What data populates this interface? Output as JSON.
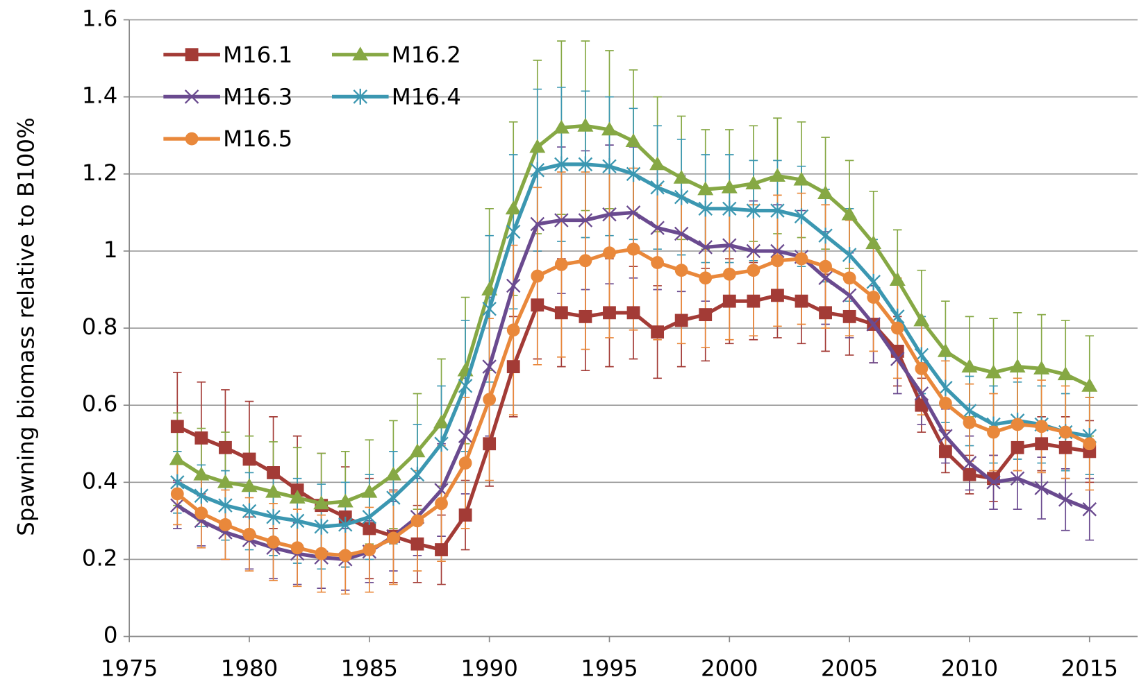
{
  "chart_data": {
    "type": "line",
    "y_label": "Spawning  biomass relative to B100%",
    "x": [
      1977,
      1978,
      1979,
      1980,
      1981,
      1982,
      1983,
      1984,
      1985,
      1986,
      1987,
      1988,
      1989,
      1990,
      1991,
      1992,
      1993,
      1994,
      1995,
      1996,
      1997,
      1998,
      1999,
      2000,
      2001,
      2002,
      2003,
      2004,
      2005,
      2006,
      2007,
      2008,
      2009,
      2010,
      2011,
      2012,
      2013,
      2014,
      2015
    ],
    "xlim": [
      1975,
      2017
    ],
    "xticks": [
      1975,
      1980,
      1985,
      1990,
      1995,
      2000,
      2005,
      2010,
      2015
    ],
    "ylim": [
      0,
      1.6
    ],
    "yticks": [
      0,
      0.2,
      0.4,
      0.6,
      0.8,
      1,
      1.2,
      1.4,
      1.6
    ],
    "grid": true,
    "legend": "upper left",
    "series": [
      {
        "name": "M16.1",
        "color": "#a33b36",
        "marker": "square",
        "values": [
          0.545,
          0.515,
          0.49,
          0.46,
          0.425,
          0.38,
          0.34,
          0.31,
          0.28,
          0.26,
          0.24,
          0.225,
          0.315,
          0.5,
          0.7,
          0.86,
          0.84,
          0.83,
          0.84,
          0.84,
          0.79,
          0.82,
          0.835,
          0.87,
          0.87,
          0.885,
          0.87,
          0.84,
          0.83,
          0.81,
          0.74,
          0.6,
          0.48,
          0.42,
          0.41,
          0.49,
          0.5,
          0.49,
          0.48
        ],
        "errors": [
          0.14,
          0.145,
          0.15,
          0.15,
          0.145,
          0.14,
          0.135,
          0.13,
          0.13,
          0.12,
          0.1,
          0.09,
          0.09,
          0.11,
          0.13,
          0.14,
          0.14,
          0.14,
          0.14,
          0.12,
          0.12,
          0.12,
          0.12,
          0.11,
          0.1,
          0.11,
          0.11,
          0.1,
          0.1,
          0.1,
          0.09,
          0.07,
          0.055,
          0.05,
          0.06,
          0.06,
          0.07,
          0.08,
          0.08
        ]
      },
      {
        "name": "M16.2",
        "color": "#86a844",
        "marker": "triangle",
        "values": [
          0.46,
          0.42,
          0.4,
          0.39,
          0.375,
          0.36,
          0.345,
          0.35,
          0.375,
          0.42,
          0.48,
          0.555,
          0.69,
          0.9,
          1.11,
          1.27,
          1.32,
          1.325,
          1.315,
          1.285,
          1.225,
          1.19,
          1.16,
          1.165,
          1.175,
          1.195,
          1.185,
          1.15,
          1.095,
          1.02,
          0.925,
          0.82,
          0.74,
          0.7,
          0.685,
          0.7,
          0.695,
          0.68,
          0.65
        ],
        "errors": [
          0.12,
          0.12,
          0.13,
          0.13,
          0.13,
          0.13,
          0.13,
          0.13,
          0.135,
          0.14,
          0.15,
          0.165,
          0.19,
          0.21,
          0.225,
          0.225,
          0.225,
          0.22,
          0.205,
          0.185,
          0.175,
          0.16,
          0.155,
          0.15,
          0.15,
          0.15,
          0.15,
          0.145,
          0.14,
          0.135,
          0.13,
          0.13,
          0.13,
          0.13,
          0.14,
          0.14,
          0.14,
          0.14,
          0.13
        ]
      },
      {
        "name": "M16.3",
        "color": "#6a4a8f",
        "marker": "x",
        "values": [
          0.34,
          0.3,
          0.27,
          0.25,
          0.23,
          0.215,
          0.205,
          0.2,
          0.22,
          0.26,
          0.31,
          0.38,
          0.52,
          0.7,
          0.91,
          1.07,
          1.08,
          1.08,
          1.095,
          1.1,
          1.06,
          1.045,
          1.01,
          1.015,
          1.0,
          1.0,
          0.985,
          0.93,
          0.885,
          0.81,
          0.72,
          0.63,
          0.52,
          0.45,
          0.4,
          0.41,
          0.385,
          0.355,
          0.33
        ],
        "errors": [
          0.06,
          0.065,
          0.07,
          0.075,
          0.08,
          0.08,
          0.08,
          0.08,
          0.08,
          0.09,
          0.1,
          0.12,
          0.15,
          0.18,
          0.2,
          0.2,
          0.19,
          0.18,
          0.18,
          0.17,
          0.16,
          0.15,
          0.14,
          0.14,
          0.13,
          0.12,
          0.12,
          0.12,
          0.11,
          0.1,
          0.09,
          0.08,
          0.07,
          0.07,
          0.07,
          0.08,
          0.08,
          0.08,
          0.08
        ]
      },
      {
        "name": "M16.4",
        "color": "#3b97b1",
        "marker": "star",
        "values": [
          0.4,
          0.365,
          0.34,
          0.325,
          0.31,
          0.3,
          0.285,
          0.29,
          0.31,
          0.36,
          0.42,
          0.5,
          0.65,
          0.85,
          1.05,
          1.21,
          1.225,
          1.225,
          1.22,
          1.2,
          1.165,
          1.14,
          1.11,
          1.11,
          1.105,
          1.105,
          1.09,
          1.04,
          0.99,
          0.92,
          0.83,
          0.73,
          0.645,
          0.585,
          0.55,
          0.56,
          0.55,
          0.53,
          0.52
        ],
        "errors": [
          0.08,
          0.08,
          0.09,
          0.1,
          0.1,
          0.11,
          0.11,
          0.11,
          0.11,
          0.12,
          0.13,
          0.15,
          0.17,
          0.19,
          0.2,
          0.21,
          0.2,
          0.19,
          0.18,
          0.17,
          0.16,
          0.15,
          0.14,
          0.14,
          0.13,
          0.13,
          0.13,
          0.12,
          0.12,
          0.11,
          0.1,
          0.1,
          0.09,
          0.09,
          0.1,
          0.1,
          0.1,
          0.1,
          0.1
        ]
      },
      {
        "name": "M16.5",
        "color": "#e9883b",
        "marker": "circle",
        "values": [
          0.37,
          0.32,
          0.29,
          0.265,
          0.245,
          0.23,
          0.215,
          0.21,
          0.225,
          0.255,
          0.3,
          0.345,
          0.45,
          0.615,
          0.795,
          0.935,
          0.965,
          0.975,
          0.995,
          1.005,
          0.97,
          0.95,
          0.93,
          0.94,
          0.95,
          0.975,
          0.98,
          0.96,
          0.93,
          0.88,
          0.8,
          0.695,
          0.605,
          0.555,
          0.53,
          0.55,
          0.545,
          0.53,
          0.5
        ],
        "errors": [
          0.08,
          0.09,
          0.09,
          0.095,
          0.1,
          0.1,
          0.1,
          0.1,
          0.11,
          0.12,
          0.13,
          0.15,
          0.17,
          0.21,
          0.22,
          0.23,
          0.24,
          0.23,
          0.22,
          0.21,
          0.2,
          0.19,
          0.18,
          0.17,
          0.17,
          0.17,
          0.17,
          0.16,
          0.15,
          0.14,
          0.13,
          0.12,
          0.11,
          0.1,
          0.1,
          0.12,
          0.12,
          0.12,
          0.12
        ]
      }
    ]
  }
}
